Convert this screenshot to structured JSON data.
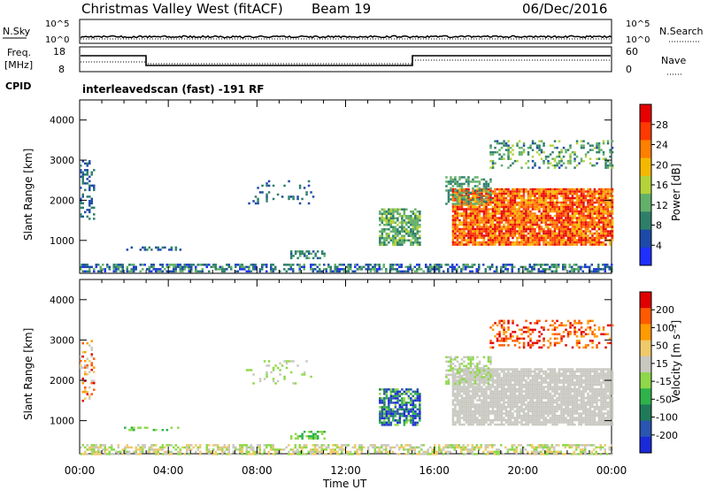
{
  "header": {
    "site": "Christmas Valley West (fitACF)",
    "beam": "Beam 19",
    "date": "06/Dec/2016"
  },
  "top_panels": {
    "nsky_label": "N.Sky",
    "nsearch_label": "N.Search",
    "noise_ticks": [
      "10^5",
      "10^0"
    ],
    "freq_label": "Freq.",
    "freq_unit": "[MHz]",
    "freq_ticks": [
      "18",
      "8"
    ],
    "nave_label": "Nave",
    "nave_ticks": [
      "60",
      "0"
    ],
    "cpid_label": "CPID",
    "cpid_text": "interleavedscan (fast) -191 RF"
  },
  "colors": {
    "power": [
      "#1f2fff",
      "#1c4aa8",
      "#2e7f6a",
      "#63b06a",
      "#b4d33a",
      "#f5b800",
      "#ff7f00",
      "#ff3a00",
      "#e60000"
    ],
    "velocity": [
      "#e00000",
      "#ff5a00",
      "#ff9a00",
      "#f0c96a",
      "#c8c8c0",
      "#8ed84a",
      "#2fb24a",
      "#1f7a5a",
      "#2a55b0",
      "#1a2ad8"
    ]
  },
  "chart_data": [
    {
      "type": "heatmap",
      "name_printed": "Power",
      "xlabel": "",
      "ylabel": "Slant Range [km]",
      "x_range_hours": [
        0,
        24
      ],
      "ylim": [
        180,
        4500
      ],
      "y_ticks": [
        1000,
        2000,
        3000,
        4000
      ],
      "colorbar_label": "Power [dB]",
      "colorbar_ticks": [
        "4",
        "8",
        "12",
        "16",
        "20",
        "24",
        "28"
      ],
      "colorbar_range": [
        0,
        32
      ],
      "regions": [
        {
          "t": [
            0.0,
            24.0
          ],
          "r": [
            200,
            420
          ],
          "density": 0.55,
          "v": [
            2,
            14
          ]
        },
        {
          "t": [
            2.0,
            4.5
          ],
          "r": [
            750,
            850
          ],
          "density": 0.4,
          "v": [
            4,
            10
          ]
        },
        {
          "t": [
            9.5,
            11.0
          ],
          "r": [
            550,
            750
          ],
          "density": 0.5,
          "v": [
            6,
            12
          ]
        },
        {
          "t": [
            13.5,
            15.3
          ],
          "r": [
            900,
            1800
          ],
          "density": 0.75,
          "v": [
            8,
            16
          ]
        },
        {
          "t": [
            16.8,
            24.0
          ],
          "r": [
            900,
            2300
          ],
          "density": 0.9,
          "v": [
            18,
            32
          ]
        },
        {
          "t": [
            16.5,
            18.5
          ],
          "r": [
            1900,
            2600
          ],
          "density": 0.5,
          "v": [
            8,
            14
          ]
        },
        {
          "t": [
            18.5,
            24.0
          ],
          "r": [
            2800,
            3500
          ],
          "density": 0.3,
          "v": [
            6,
            16
          ]
        },
        {
          "t": [
            0.0,
            0.6
          ],
          "r": [
            1500,
            3000
          ],
          "density": 0.3,
          "v": [
            4,
            10
          ]
        },
        {
          "t": [
            7.5,
            10.5
          ],
          "r": [
            1900,
            2500
          ],
          "density": 0.15,
          "v": [
            4,
            10
          ]
        }
      ]
    },
    {
      "type": "heatmap",
      "name_printed": "Velocity",
      "xlabel": "Time UT",
      "ylabel": "Slant Range [km]",
      "x_range_hours": [
        0,
        24
      ],
      "x_ticks": [
        "00:00",
        "04:00",
        "08:00",
        "12:00",
        "16:00",
        "20:00",
        "00:00"
      ],
      "ylim": [
        180,
        4500
      ],
      "y_ticks": [
        1000,
        2000,
        3000,
        4000
      ],
      "colorbar_label": "Velocity [m s⁻¹]",
      "colorbar_ticks": [
        "200",
        "100",
        "50",
        "15",
        "-15",
        "-50",
        "-100",
        "-200"
      ],
      "regions": [
        {
          "t": [
            0.0,
            24.0
          ],
          "r": [
            200,
            420
          ],
          "density": 0.55,
          "c": [
            3,
            5
          ]
        },
        {
          "t": [
            2.0,
            4.5
          ],
          "r": [
            750,
            850
          ],
          "density": 0.4,
          "c": [
            5,
            6
          ]
        },
        {
          "t": [
            9.5,
            11.0
          ],
          "r": [
            550,
            750
          ],
          "density": 0.5,
          "c": [
            5,
            6
          ]
        },
        {
          "t": [
            13.5,
            15.3
          ],
          "r": [
            900,
            1800
          ],
          "density": 0.75,
          "c": [
            5,
            9
          ]
        },
        {
          "t": [
            16.8,
            24.0
          ],
          "r": [
            900,
            2300
          ],
          "density": 0.9,
          "c": [
            4,
            4
          ]
        },
        {
          "t": [
            16.5,
            18.5
          ],
          "r": [
            1900,
            2600
          ],
          "density": 0.5,
          "c": [
            4,
            5
          ]
        },
        {
          "t": [
            18.5,
            24.0
          ],
          "r": [
            2800,
            3500
          ],
          "density": 0.3,
          "c": [
            0,
            2
          ]
        },
        {
          "t": [
            0.0,
            0.6
          ],
          "r": [
            1500,
            3000
          ],
          "density": 0.3,
          "c": [
            0,
            4
          ]
        },
        {
          "t": [
            7.5,
            10.5
          ],
          "r": [
            1900,
            2500
          ],
          "density": 0.15,
          "c": [
            4,
            5
          ]
        }
      ]
    }
  ]
}
